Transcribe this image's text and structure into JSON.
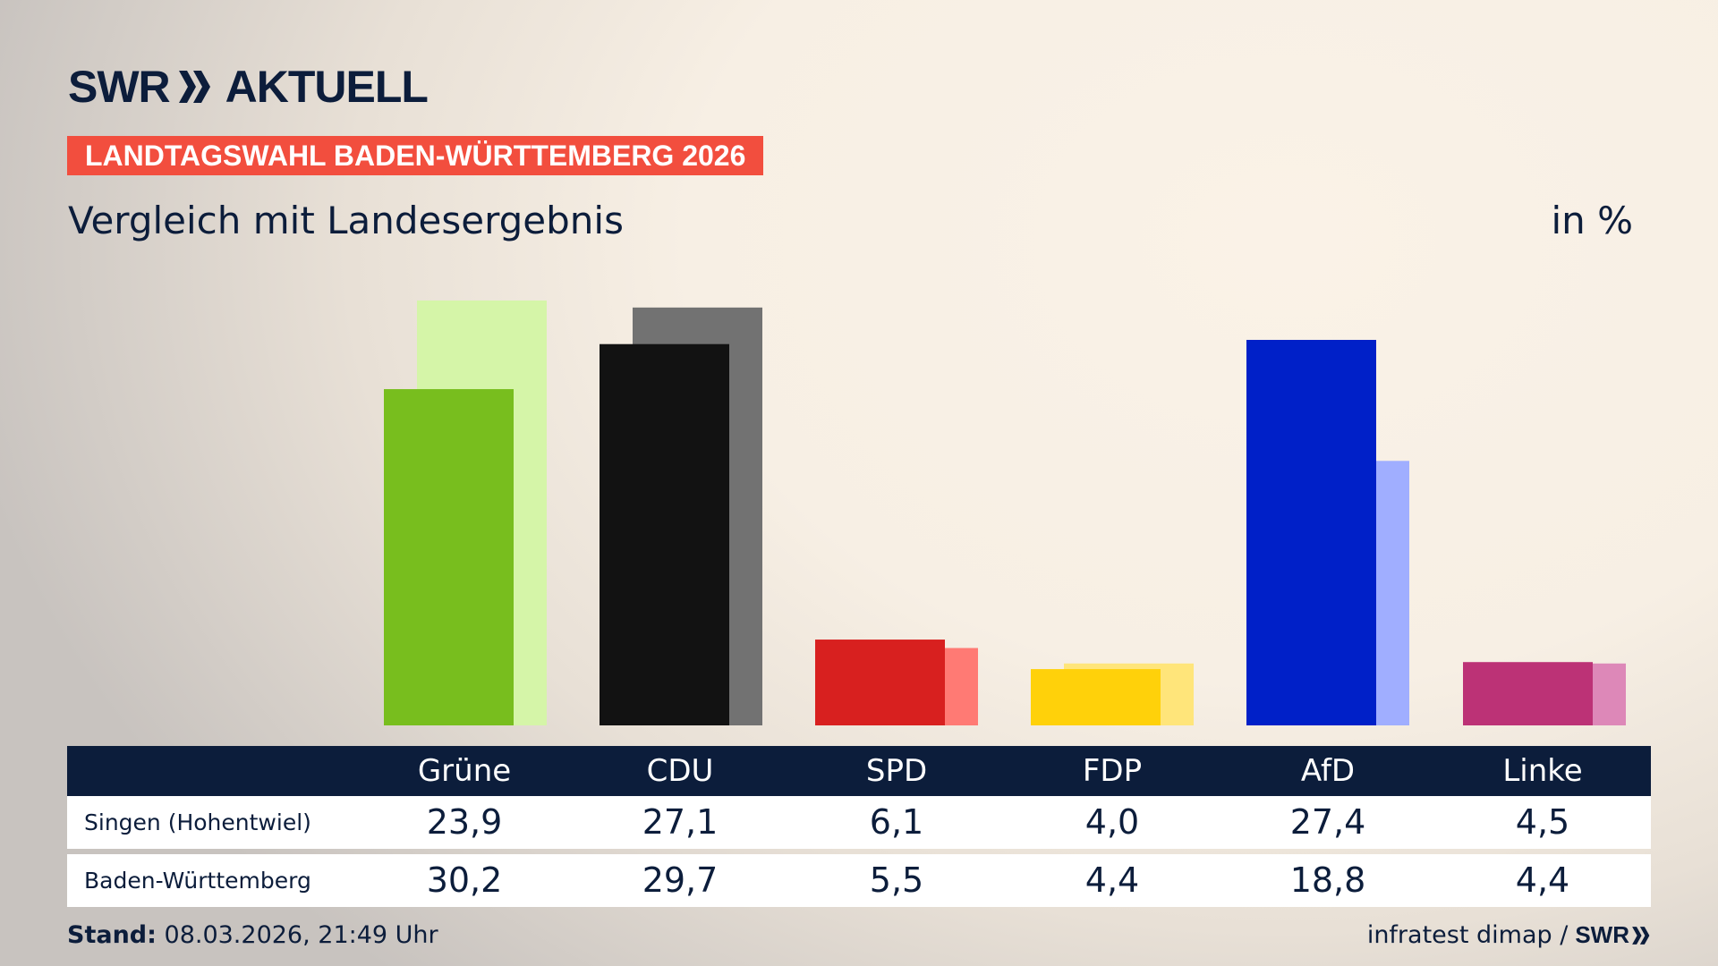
{
  "brand": {
    "logo_text": "SWR",
    "logo_suffix": "AKTUELL"
  },
  "banner": "LANDTAGSWAHL BADEN-WÜRTTEMBERG 2026",
  "subtitle": "Vergleich mit Landesergebnis",
  "unit": "in %",
  "chart_data": {
    "type": "bar",
    "categories": [
      "Grüne",
      "CDU",
      "SPD",
      "FDP",
      "AfD",
      "Linke"
    ],
    "series": [
      {
        "name": "Singen (Hohentwiel)",
        "values": [
          23.9,
          27.1,
          6.1,
          4.0,
          27.4,
          4.5
        ],
        "labels": [
          "23,9",
          "27,1",
          "6,1",
          "4,0",
          "27,4",
          "4,5"
        ]
      },
      {
        "name": "Baden-Württemberg",
        "values": [
          30.2,
          29.7,
          5.5,
          4.4,
          18.8,
          4.4
        ],
        "labels": [
          "30,2",
          "29,7",
          "5,5",
          "4,4",
          "18,8",
          "4,4"
        ]
      }
    ],
    "colors": {
      "primary": [
        "#78be1e",
        "#121212",
        "#d8201f",
        "#ffd10a",
        "#0020c8",
        "#bc3276"
      ],
      "secondary": [
        "#d5f5a8",
        "#727272",
        "#ff7a74",
        "#ffe57a",
        "#a0aeff",
        "#dd88b8"
      ]
    },
    "ylim": [
      0,
      31
    ],
    "grid": false,
    "legend": "table-below"
  },
  "footer": {
    "stand_label": "Stand:",
    "stand_value": "08.03.2026, 21:49 Uhr",
    "source": "infratest dimap /",
    "source_logo": "SWR"
  }
}
